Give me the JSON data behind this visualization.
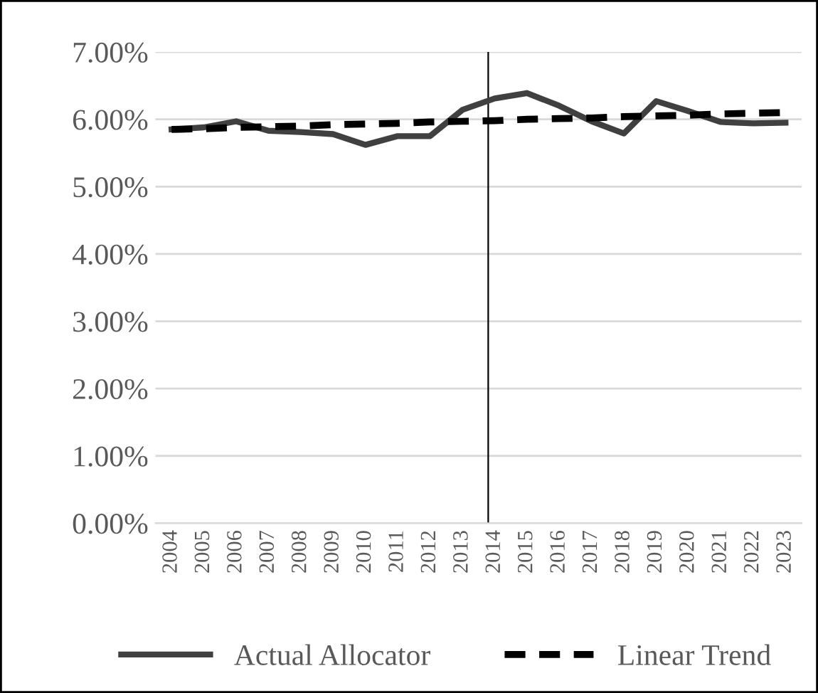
{
  "chart_data": {
    "type": "line",
    "categories": [
      "2004",
      "2005",
      "2006",
      "2007",
      "2008",
      "2009",
      "2010",
      "2011",
      "2012",
      "2013",
      "2014",
      "2015",
      "2016",
      "2017",
      "2018",
      "2019",
      "2020",
      "2021",
      "2022",
      "2023"
    ],
    "series": [
      {
        "name": "Actual Allocator",
        "color": "#404040",
        "line_style": "solid",
        "values": [
          5.85,
          5.88,
          5.97,
          5.83,
          5.81,
          5.78,
          5.62,
          5.75,
          5.75,
          6.14,
          6.31,
          6.39,
          6.2,
          5.97,
          5.79,
          6.27,
          6.12,
          5.96,
          5.94,
          5.95
        ]
      },
      {
        "name": "Linear Trend",
        "color": "#000000",
        "line_style": "dashed",
        "values": [
          5.85,
          5.86,
          5.88,
          5.89,
          5.9,
          5.92,
          5.93,
          5.94,
          5.96,
          5.97,
          5.98,
          6.0,
          6.01,
          6.02,
          6.04,
          6.05,
          6.06,
          6.08,
          6.09,
          6.1
        ]
      }
    ],
    "ylim": [
      0,
      7
    ],
    "yticks": [
      {
        "value": 0,
        "label": "0.00%"
      },
      {
        "value": 1,
        "label": "1.00%"
      },
      {
        "value": 2,
        "label": "2.00%"
      },
      {
        "value": 3,
        "label": "3.00%"
      },
      {
        "value": 4,
        "label": "4.00%"
      },
      {
        "value": 5,
        "label": "5.00%"
      },
      {
        "value": 6,
        "label": "6.00%"
      },
      {
        "value": 7,
        "label": "7.00%"
      }
    ],
    "ref_lines": [
      {
        "axis": "x",
        "value": "2014",
        "color": "#000000"
      }
    ],
    "grid": "y",
    "legend": "bottom",
    "marker": "none"
  }
}
